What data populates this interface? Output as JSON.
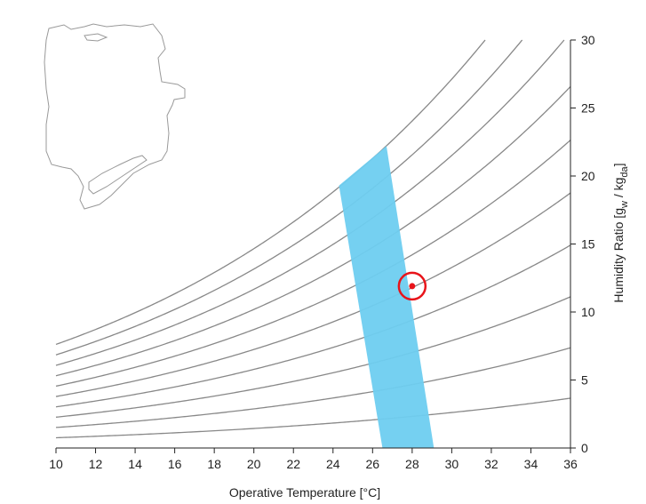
{
  "chart_data": {
    "type": "line",
    "xlabel": "Operative Temperature [°C]",
    "ylabel_parts": {
      "main": "Humidity Ratio [g",
      "w_sub": "w",
      "sep": " / kg",
      "da_sub": "da",
      "close": "]"
    },
    "xlim": [
      10,
      36
    ],
    "ylim": [
      0,
      30
    ],
    "x_ticks": [
      "10",
      "12",
      "14",
      "16",
      "18",
      "20",
      "22",
      "24",
      "26",
      "28",
      "30",
      "32",
      "34",
      "36"
    ],
    "y_ticks": [
      "0",
      "5",
      "10",
      "15",
      "20",
      "25",
      "30"
    ],
    "y_axis_position": "right",
    "grid": false,
    "relative_humidity_curves": {
      "rh_percent": [
        10,
        20,
        30,
        40,
        50,
        60,
        70,
        80,
        90,
        100
      ],
      "x": [
        10,
        14,
        18,
        22,
        26,
        30,
        34,
        36
      ]
    },
    "comfort_zone": {
      "polygon": [
        [
          26.5,
          0
        ],
        [
          29.1,
          0
        ],
        [
          26.7,
          22.2
        ],
        [
          24.3,
          19.3
        ]
      ],
      "color": "#6ecdf0"
    },
    "current_point": {
      "x": 28.0,
      "y": 11.9,
      "color": "#e8141a"
    },
    "curve_color": "#888888"
  },
  "map_inset": {
    "name": "location-map-outline"
  }
}
